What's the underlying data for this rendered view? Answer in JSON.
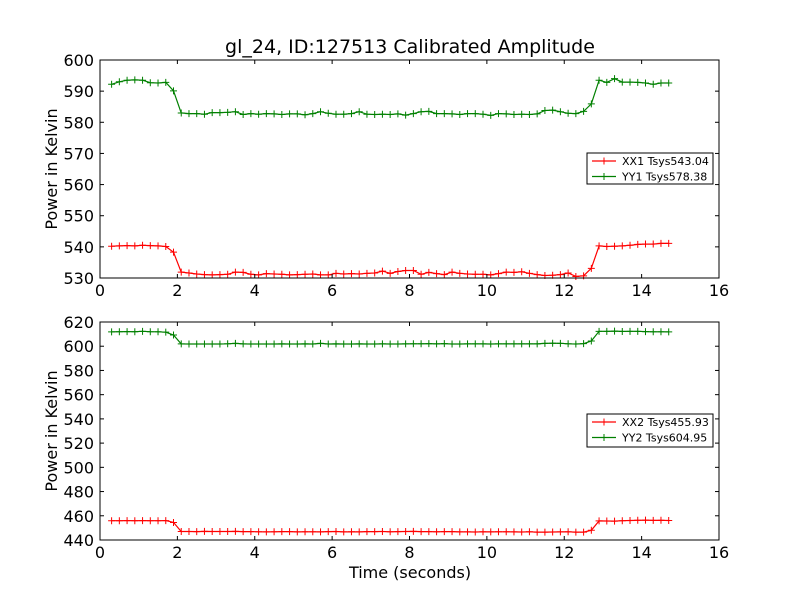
{
  "chart_data": [
    {
      "type": "line",
      "title": "gl_24, ID:127513 Calibrated Amplitude",
      "xlabel": "",
      "ylabel": "Power in Kelvin",
      "xlim": [
        0,
        16
      ],
      "ylim": [
        530,
        600
      ],
      "xticks": [
        0,
        2,
        4,
        6,
        8,
        10,
        12,
        14,
        16
      ],
      "yticks": [
        530,
        540,
        550,
        560,
        570,
        580,
        590,
        600
      ],
      "legend_position": "center-right",
      "x": [
        0.3,
        0.5,
        0.7,
        0.9,
        1.1,
        1.3,
        1.5,
        1.7,
        1.9,
        2.1,
        2.3,
        2.5,
        2.7,
        2.9,
        3.1,
        3.3,
        3.5,
        3.7,
        3.9,
        4.1,
        4.3,
        4.5,
        4.7,
        4.9,
        5.1,
        5.3,
        5.5,
        5.7,
        5.9,
        6.1,
        6.3,
        6.5,
        6.7,
        6.9,
        7.1,
        7.3,
        7.5,
        7.7,
        7.9,
        8.1,
        8.3,
        8.5,
        8.7,
        8.9,
        9.1,
        9.3,
        9.5,
        9.7,
        9.9,
        10.1,
        10.3,
        10.5,
        10.7,
        10.9,
        11.1,
        11.3,
        11.5,
        11.7,
        11.9,
        12.1,
        12.3,
        12.5,
        12.7,
        12.9,
        13.1,
        13.3,
        13.5,
        13.7,
        13.9,
        14.1,
        14.3,
        14.5,
        14.7
      ],
      "series": [
        {
          "name": "XX1 Tsys543.04",
          "color": "#ff0000",
          "values": [
            540.2,
            540.3,
            540.4,
            540.3,
            540.5,
            540.4,
            540.3,
            540.1,
            538.3,
            531.9,
            531.6,
            531.3,
            531.1,
            531.0,
            531.1,
            531.2,
            531.9,
            531.8,
            531.2,
            531.0,
            531.4,
            531.3,
            531.2,
            531.0,
            531.1,
            531.2,
            531.3,
            531.0,
            531.0,
            531.5,
            531.3,
            531.4,
            531.3,
            531.5,
            531.6,
            532.2,
            531.5,
            532.1,
            532.4,
            532.4,
            531.2,
            531.8,
            531.4,
            531.1,
            531.9,
            531.5,
            531.3,
            531.2,
            531.2,
            531.0,
            531.4,
            531.9,
            531.8,
            532.0,
            531.5,
            531.1,
            530.8,
            530.9,
            531.1,
            531.6,
            530.5,
            530.7,
            533.1,
            540.3,
            540.1,
            540.2,
            540.3,
            540.5,
            540.8,
            540.9,
            540.9,
            541.1,
            541.1
          ]
        },
        {
          "name": "YY1 Tsys578.38",
          "color": "#008000",
          "values": [
            592.2,
            593.0,
            593.5,
            593.6,
            593.5,
            592.7,
            592.6,
            592.8,
            590.1,
            583.0,
            582.8,
            582.8,
            582.6,
            583.1,
            583.1,
            583.2,
            583.4,
            582.5,
            582.8,
            582.6,
            582.8,
            582.7,
            582.5,
            582.7,
            582.7,
            582.4,
            582.8,
            583.4,
            582.9,
            582.6,
            582.6,
            582.8,
            583.4,
            582.6,
            582.5,
            582.6,
            582.5,
            582.7,
            582.3,
            582.8,
            583.4,
            583.5,
            582.8,
            582.8,
            582.7,
            582.5,
            582.8,
            582.8,
            582.6,
            582.2,
            582.8,
            582.7,
            582.5,
            582.6,
            582.5,
            582.7,
            583.8,
            583.9,
            583.4,
            582.9,
            582.8,
            583.5,
            585.9,
            593.5,
            592.8,
            594.0,
            592.9,
            592.9,
            592.8,
            592.6,
            592.2,
            592.6,
            592.6
          ]
        }
      ]
    },
    {
      "type": "line",
      "title": "",
      "xlabel": "Time (seconds)",
      "ylabel": "Power in Kelvin",
      "xlim": [
        0,
        16
      ],
      "ylim": [
        440,
        620
      ],
      "xticks": [
        0,
        2,
        4,
        6,
        8,
        10,
        12,
        14,
        16
      ],
      "yticks": [
        440,
        460,
        480,
        500,
        520,
        540,
        560,
        580,
        600,
        620
      ],
      "legend_position": "center-right",
      "x": [
        0.3,
        0.5,
        0.7,
        0.9,
        1.1,
        1.3,
        1.5,
        1.7,
        1.9,
        2.1,
        2.3,
        2.5,
        2.7,
        2.9,
        3.1,
        3.3,
        3.5,
        3.7,
        3.9,
        4.1,
        4.3,
        4.5,
        4.7,
        4.9,
        5.1,
        5.3,
        5.5,
        5.7,
        5.9,
        6.1,
        6.3,
        6.5,
        6.7,
        6.9,
        7.1,
        7.3,
        7.5,
        7.7,
        7.9,
        8.1,
        8.3,
        8.5,
        8.7,
        8.9,
        9.1,
        9.3,
        9.5,
        9.7,
        9.9,
        10.1,
        10.3,
        10.5,
        10.7,
        10.9,
        11.1,
        11.3,
        11.5,
        11.7,
        11.9,
        12.1,
        12.3,
        12.5,
        12.7,
        12.9,
        13.1,
        13.3,
        13.5,
        13.7,
        13.9,
        14.1,
        14.3,
        14.5,
        14.7
      ],
      "series": [
        {
          "name": "XX2 Tsys455.93",
          "color": "#ff0000",
          "values": [
            455.9,
            455.9,
            456.0,
            455.9,
            456.0,
            455.9,
            455.9,
            456.0,
            454.5,
            447.0,
            447.0,
            446.9,
            447.1,
            447.0,
            447.0,
            447.0,
            447.1,
            446.9,
            446.9,
            446.8,
            446.7,
            446.8,
            446.9,
            446.9,
            446.7,
            446.8,
            446.8,
            446.7,
            446.9,
            447.0,
            446.7,
            446.8,
            446.7,
            446.9,
            446.9,
            447.0,
            446.8,
            446.9,
            447.0,
            447.1,
            446.9,
            446.9,
            446.8,
            446.9,
            446.9,
            446.7,
            446.7,
            446.6,
            446.8,
            446.7,
            446.8,
            446.8,
            446.7,
            446.6,
            446.8,
            446.5,
            446.5,
            446.6,
            446.7,
            446.8,
            446.5,
            446.5,
            448.0,
            455.8,
            455.7,
            455.6,
            455.9,
            456.1,
            456.3,
            456.4,
            456.2,
            456.3,
            456.1
          ]
        },
        {
          "name": "YY2 Tsys604.95",
          "color": "#008000",
          "values": [
            611.8,
            612.0,
            612.1,
            612.0,
            612.3,
            612.0,
            611.9,
            611.6,
            609.3,
            601.9,
            601.8,
            601.8,
            601.8,
            601.8,
            601.8,
            602.0,
            602.3,
            601.9,
            601.8,
            601.8,
            601.8,
            601.8,
            601.9,
            601.8,
            601.8,
            601.9,
            601.8,
            602.3,
            601.8,
            601.9,
            601.8,
            601.8,
            601.9,
            601.8,
            601.8,
            601.9,
            601.8,
            601.8,
            601.9,
            602.0,
            602.0,
            602.1,
            601.9,
            602.1,
            601.8,
            601.8,
            601.9,
            601.9,
            601.9,
            601.8,
            601.9,
            601.9,
            601.9,
            601.9,
            601.9,
            601.9,
            602.3,
            602.5,
            602.4,
            602.0,
            601.8,
            602.1,
            604.3,
            612.3,
            612.3,
            612.5,
            612.2,
            612.3,
            612.3,
            612.1,
            611.9,
            611.9,
            611.8
          ]
        }
      ]
    }
  ]
}
